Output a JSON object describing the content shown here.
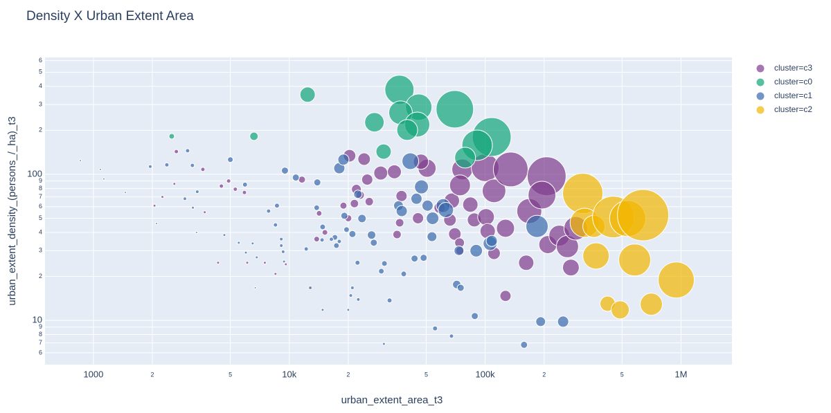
{
  "chart_data": {
    "type": "scatter",
    "title": "Density X Urban Extent Area",
    "xlabel": "urban_extent_area_t3",
    "ylabel": "urban_extent_density_(persons_/_ha)_t3",
    "log_x": true,
    "log_y": true,
    "grid": true,
    "legend": "right",
    "xlim": [
      566,
      1820000
    ],
    "ylim": [
      4.98,
      631
    ],
    "xticks": [
      1000,
      {
        "value": 2000,
        "label": "2"
      },
      {
        "value": 5000,
        "label": "5"
      },
      {
        "value": 10000,
        "label": "10k"
      },
      {
        "value": 20000,
        "label": "2"
      },
      {
        "value": 50000,
        "label": "5"
      },
      {
        "value": 100000,
        "label": "100k"
      },
      {
        "value": 200000,
        "label": "2"
      },
      {
        "value": 500000,
        "label": "5"
      },
      {
        "value": 1000000,
        "label": "1M"
      }
    ],
    "yticks": [
      6,
      7,
      8,
      9,
      10,
      {
        "value": 20,
        "label": "2"
      },
      {
        "value": 30,
        "label": "3"
      },
      {
        "value": 40,
        "label": "4"
      },
      {
        "value": 50,
        "label": "5"
      },
      {
        "value": 60,
        "label": "6"
      },
      {
        "value": 70,
        "label": "7"
      },
      {
        "value": 80,
        "label": "8"
      },
      {
        "value": 90,
        "label": "9"
      },
      100,
      {
        "value": 200,
        "label": "2"
      },
      {
        "value": 300,
        "label": "3"
      },
      {
        "value": 400,
        "label": "4"
      },
      {
        "value": 500,
        "label": "5"
      },
      {
        "value": 600,
        "label": "6"
      }
    ],
    "series": [
      {
        "name": "cluster=c3",
        "color": "#7f3c8d",
        "x": [
          2650,
          3620,
          2590,
          2250,
          2050,
          3700,
          4500,
          4900,
          5300,
          5900,
          4330,
          6100,
          7500,
          8500,
          9600,
          11600,
          14200,
          15200,
          13800,
          20300,
          24100,
          22000,
          23000,
          18900,
          21500,
          25600,
          20000,
          25000,
          29300,
          34400,
          37400,
          36600,
          35500,
          45400,
          50500,
          47000,
          58500,
          67600,
          66100,
          70000,
          74000,
          74400,
          76400,
          74400,
          84000,
          88000,
          101000,
          103000,
          111000,
          100000,
          111000,
          127000,
          127000,
          135000,
          162000,
          168000,
          206000,
          195000,
          209000,
          239000,
          263000,
          274000,
          290000
        ],
        "y": [
          143,
          108,
          86,
          70,
          61,
          55,
          83,
          90,
          79,
          75,
          24.8,
          24.8,
          24.8,
          20.8,
          24.2,
          92,
          54,
          40,
          36,
          134,
          127,
          79,
          72,
          61,
          63,
          65,
          50,
          92,
          102,
          104,
          71,
          46.6,
          38.7,
          50,
          110,
          122,
          59,
          66,
          48.7,
          39,
          34,
          30,
          108,
          84,
          62,
          48.7,
          51,
          40.8,
          28.8,
          111,
          77,
          42.7,
          14.7,
          108,
          24.8,
          56,
          97,
          72,
          33,
          38,
          32,
          23,
          42.7
        ],
        "sizes": [
          6,
          6,
          4,
          4,
          4,
          4,
          6,
          6,
          6,
          6,
          4,
          4,
          4,
          4,
          4,
          10,
          8,
          8,
          8,
          18,
          18,
          14,
          12,
          10,
          12,
          12,
          10,
          16,
          20,
          20,
          16,
          12,
          12,
          16,
          26,
          22,
          16,
          22,
          18,
          18,
          14,
          12,
          30,
          30,
          22,
          20,
          24,
          22,
          18,
          40,
          34,
          26,
          16,
          50,
          22,
          36,
          56,
          40,
          26,
          30,
          32,
          24,
          34
        ]
      },
      {
        "name": "cluster=c0",
        "color": "#11a579",
        "x": [
          12400,
          2510,
          6600,
          36500,
          45800,
          37000,
          45000,
          40000,
          70000,
          27200,
          30300,
          108000,
          91000,
          79000
        ],
        "y": [
          351,
          182,
          182,
          379,
          288,
          264,
          219,
          201,
          279,
          227,
          143,
          180,
          158,
          130
        ],
        "sizes": [
          22,
          8,
          12,
          42,
          38,
          34,
          36,
          30,
          54,
          28,
          22,
          56,
          44,
          30
        ]
      },
      {
        "name": "cluster=c1",
        "color": "#3969ac",
        "x": [
          857,
          1085,
          1130,
          1455,
          1950,
          2100,
          2370,
          3025,
          3200,
          2930,
          3220,
          3360,
          3390,
          5000,
          5940,
          4660,
          5520,
          6000,
          6500,
          6820,
          6700,
          7840,
          8650,
          8500,
          9100,
          9100,
          9300,
          9400,
          9500,
          10800,
          13900,
          13800,
          14800,
          12800,
          14800,
          12200,
          14700,
          17100,
          17400,
          18000,
          19100,
          19600,
          16400,
          21000,
          21000,
          20600,
          20000,
          22500,
          22300,
          18000,
          18900,
          22400,
          23500,
          26300,
          27000,
          30600,
          29500,
          30400,
          32500,
          38400,
          36100,
          37500,
          41500,
          47300,
          44600,
          50800,
          53900,
          53500,
          43600,
          48500,
          55500,
          61000,
          63000,
          67300,
          71600,
          75000,
          73500,
          88500,
          90000,
          106000,
          108000,
          158000,
          192000,
          250000,
          184000
        ],
        "y": [
          124,
          108,
          93,
          75,
          113,
          46,
          116,
          145,
          115,
          68,
          59,
          40,
          76,
          126,
          85,
          38.4,
          34,
          29.1,
          33.6,
          27,
          16.7,
          56,
          61,
          45,
          36,
          32.5,
          29.5,
          25.3,
          106,
          95,
          88,
          59,
          43.6,
          16.7,
          11.8,
          30.8,
          35.5,
          37,
          32.5,
          34.7,
          52,
          41.8,
          35.9,
          39,
          16.7,
          14.8,
          11.8,
          13.9,
          24.8,
          110,
          126,
          73,
          49.8,
          38.4,
          34,
          24.5,
          21.7,
          6.9,
          13.7,
          20.8,
          61,
          56,
          123,
          82,
          68,
          61,
          50,
          37.4,
          26.5,
          26.8,
          8.8,
          61,
          57,
          7.8,
          17.6,
          16.7,
          30,
          10.7,
          30,
          33.6,
          35,
          6.8,
          9.8,
          9.8,
          44
        ],
        "sizes": [
          3,
          3,
          3,
          3,
          5,
          3,
          6,
          6,
          6,
          5,
          4,
          3,
          5,
          8,
          7,
          4,
          4,
          4,
          4,
          4,
          3,
          6,
          7,
          6,
          5,
          5,
          5,
          4,
          10,
          10,
          10,
          8,
          8,
          5,
          4,
          6,
          6,
          8,
          8,
          6,
          10,
          8,
          6,
          10,
          5,
          5,
          4,
          5,
          7,
          16,
          16,
          12,
          12,
          12,
          10,
          8,
          8,
          4,
          7,
          8,
          14,
          16,
          24,
          20,
          16,
          16,
          18,
          14,
          10,
          10,
          7,
          20,
          22,
          6,
          12,
          10,
          14,
          10,
          18,
          20,
          16,
          10,
          14,
          16,
          32
        ]
      },
      {
        "name": "cluster=c2",
        "color": "#f2b701",
        "x": [
          315000,
          322000,
          359000,
          368000,
          422000,
          489000,
          451000,
          534000,
          640000,
          580000,
          705000,
          945000
        ],
        "y": [
          74,
          46.6,
          44,
          27.6,
          13,
          11.8,
          51,
          49.8,
          52.5,
          25.9,
          12.9,
          18.9
        ],
        "sizes": [
          58,
          42,
          32,
          38,
          22,
          26,
          60,
          52,
          74,
          46,
          32,
          52
        ]
      }
    ]
  }
}
